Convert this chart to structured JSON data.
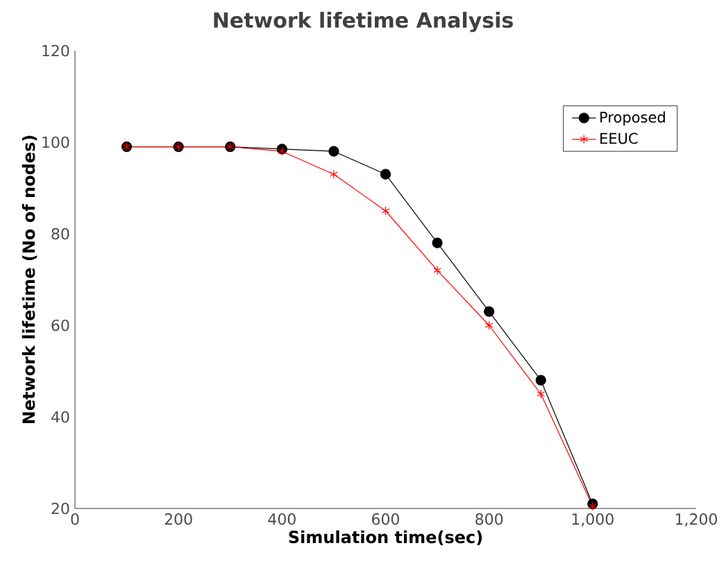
{
  "chart_data": {
    "type": "line",
    "title": "Network lifetime Analysis",
    "xlabel": "Simulation time(sec)",
    "ylabel": "Network lifetime (No of nodes)",
    "x": [
      100,
      200,
      300,
      400,
      500,
      600,
      700,
      800,
      900,
      1000
    ],
    "series": [
      {
        "name": "Proposed",
        "color": "#000000",
        "marker": "circle",
        "values": [
          99,
          99,
          99,
          98.5,
          98,
          93,
          78,
          63,
          48,
          21
        ]
      },
      {
        "name": "EEUC",
        "color": "#ff0000",
        "marker": "cross",
        "values": [
          99,
          99,
          99,
          98,
          93,
          85,
          72,
          60,
          45,
          20.5
        ]
      }
    ],
    "xlim": [
      0,
      1200
    ],
    "xticks": [
      0,
      {
        "value": 200,
        "label": "200"
      },
      {
        "value": 400,
        "label": "400"
      },
      {
        "value": 600,
        "label": "600"
      },
      {
        "value": 800,
        "label": "800"
      },
      {
        "value": 1000,
        "label": "1,000"
      },
      {
        "value": 1200,
        "label": "1,200"
      }
    ],
    "ylim": [
      20,
      120
    ],
    "yticks": [
      20,
      40,
      60,
      80,
      100,
      120
    ],
    "grid": false,
    "legend": "top right",
    "line_style": "solid"
  }
}
